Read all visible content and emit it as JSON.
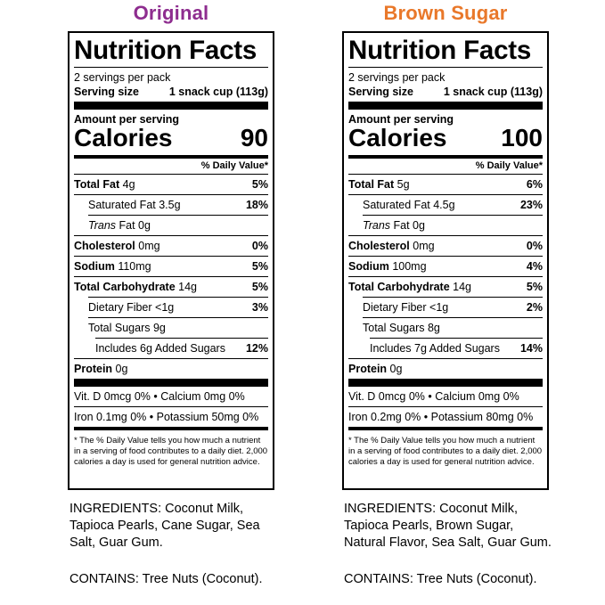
{
  "colors": {
    "original": "#8e2d8f",
    "brown_sugar": "#e9782a"
  },
  "labels": {
    "title": "Nutrition Facts",
    "serving_per": "2 servings per pack",
    "serving_size_label": "Serving size",
    "serving_size_value": "1 snack cup (113g)",
    "amount_per": "Amount per serving",
    "calories_label": "Calories",
    "daily_value_head": "% Daily Value*",
    "total_fat": "Total Fat",
    "sat_fat": "Saturated Fat",
    "trans_fat_italic": "Trans",
    "trans_fat_rest": " Fat 0g",
    "cholesterol": "Cholesterol",
    "sodium": "Sodium",
    "total_carb": "Total Carbohydrate",
    "fiber": "Dietary Fiber",
    "total_sugars": "Total Sugars",
    "includes_prefix": "Includes",
    "added_sugars_suffix": "Added Sugars",
    "protein": "Protein",
    "footnote": "* The % Daily Value tells you how much a nutrient in a serving of food contributes to a daily diet. 2,000 calories a day is used for general nutrition advice."
  },
  "products": [
    {
      "flavor": "Original",
      "calories": "90",
      "total_fat": " 4g",
      "total_fat_pct": "5%",
      "sat_fat": " 3.5g",
      "sat_fat_pct": "18%",
      "cholesterol": " 0mg",
      "cholesterol_pct": "0%",
      "sodium": " 110mg",
      "sodium_pct": "5%",
      "total_carb": " 14g",
      "total_carb_pct": "5%",
      "fiber": " <1g",
      "fiber_pct": "3%",
      "total_sugars": " 9g",
      "added_sugars_amount": " 6g ",
      "added_sugars_pct": "12%",
      "protein": " 0g",
      "vitamins_row1": "Vit. D 0mcg 0% • Calcium 0mg  0%",
      "vitamins_row2": "Iron 0.1mg 0% • Potassium 50mg 0%",
      "ingredients": "INGREDIENTS: Coconut Milk, Tapioca Pearls, Cane Sugar, Sea Salt, Guar Gum.",
      "contains": "CONTAINS: Tree Nuts (Coconut)."
    },
    {
      "flavor": "Brown Sugar",
      "calories": "100",
      "total_fat": " 5g",
      "total_fat_pct": "6%",
      "sat_fat": " 4.5g",
      "sat_fat_pct": "23%",
      "cholesterol": " 0mg",
      "cholesterol_pct": "0%",
      "sodium": " 100mg",
      "sodium_pct": "4%",
      "total_carb": " 14g",
      "total_carb_pct": "5%",
      "fiber": " <1g",
      "fiber_pct": "2%",
      "total_sugars": " 8g",
      "added_sugars_amount": " 7g ",
      "added_sugars_pct": "14%",
      "protein": " 0g",
      "vitamins_row1": "Vit. D 0mcg 0% • Calcium 0mg  0%",
      "vitamins_row2": "Iron 0.2mg 0% • Potassium 80mg 0%",
      "ingredients": "INGREDIENTS: Coconut Milk, Tapioca Pearls, Brown Sugar, Natural Flavor, Sea Salt, Guar Gum.",
      "contains": "CONTAINS: Tree Nuts (Coconut)."
    }
  ]
}
